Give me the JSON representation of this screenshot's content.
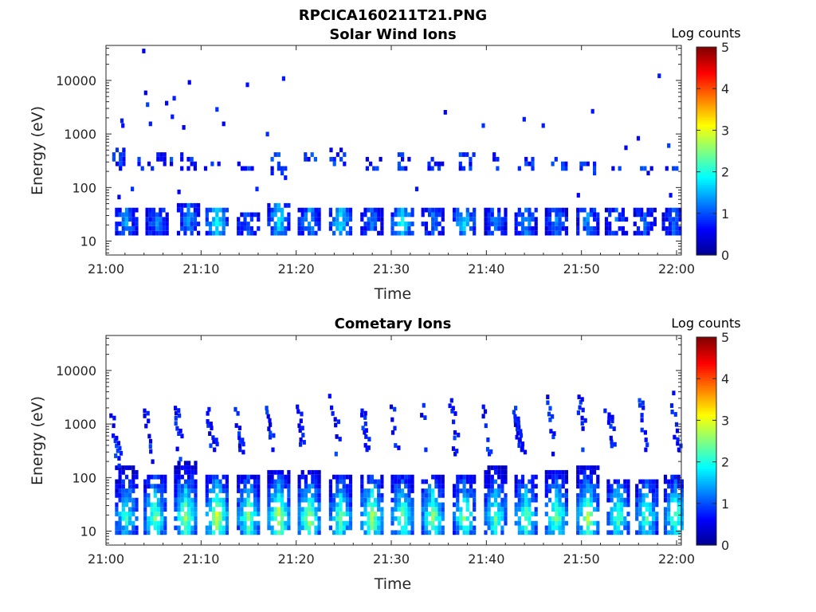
{
  "figure_title": "RPCICA160211T21.PNG",
  "colormap": [
    "#00008f",
    "#0000ff",
    "#0080ff",
    "#00ffff",
    "#80ff80",
    "#ffff00",
    "#ff8000",
    "#ff0000",
    "#800000"
  ],
  "chart_data": [
    {
      "type": "heatmap",
      "title": "Solar Wind Ions",
      "xlabel": "Time",
      "ylabel": "Energy (eV)",
      "xlim_minutes": [
        0,
        60.5
      ],
      "ylim": [
        5.5,
        45000
      ],
      "yscale": "log",
      "x_ticks": [
        "21:00",
        "21:10",
        "21:20",
        "21:30",
        "21:40",
        "21:50",
        "22:00"
      ],
      "y_ticks": [
        "10",
        "100",
        "1000",
        "10000"
      ],
      "colorbar": {
        "label": "Log counts",
        "range": [
          0,
          5
        ],
        "ticks": [
          "0",
          "1",
          "2",
          "3",
          "4",
          "5"
        ]
      },
      "bursts": [
        {
          "t": 2.0,
          "e": [
            12,
            40
          ],
          "peak": 1.4
        },
        {
          "t": 5.2,
          "e": [
            12,
            35
          ],
          "peak": 1.3
        },
        {
          "t": 8.5,
          "e": [
            12,
            45
          ],
          "peak": 1.4
        },
        {
          "t": 11.5,
          "e": [
            12,
            35
          ],
          "peak": 2.0
        },
        {
          "t": 14.8,
          "e": [
            12,
            30
          ],
          "peak": 1.2
        },
        {
          "t": 18.0,
          "e": [
            12,
            45
          ],
          "peak": 1.8
        },
        {
          "t": 21.2,
          "e": [
            12,
            40
          ],
          "peak": 1.5
        },
        {
          "t": 24.5,
          "e": [
            12,
            40
          ],
          "peak": 1.8
        },
        {
          "t": 27.8,
          "e": [
            12,
            35
          ],
          "peak": 1.2
        },
        {
          "t": 31.0,
          "e": [
            12,
            35
          ],
          "peak": 2.0
        },
        {
          "t": 34.2,
          "e": [
            12,
            35
          ],
          "peak": 1.3
        },
        {
          "t": 37.5,
          "e": [
            12,
            35
          ],
          "peak": 1.8
        },
        {
          "t": 40.8,
          "e": [
            12,
            35
          ],
          "peak": 1.3
        },
        {
          "t": 44.0,
          "e": [
            12,
            35
          ],
          "peak": 1.4
        },
        {
          "t": 47.2,
          "e": [
            12,
            35
          ],
          "peak": 1.3
        },
        {
          "t": 50.5,
          "e": [
            12,
            40
          ],
          "peak": 1.4
        },
        {
          "t": 53.5,
          "e": [
            12,
            35
          ],
          "peak": 1.2
        },
        {
          "t": 56.5,
          "e": [
            12,
            35
          ],
          "peak": 1.1
        },
        {
          "t": 59.5,
          "e": [
            12,
            35
          ],
          "peak": 1.2
        }
      ],
      "mid_clusters": [
        {
          "t": 1.0,
          "e": [
            180,
            500
          ]
        },
        {
          "t": 4.0,
          "e": [
            200,
            350
          ]
        },
        {
          "t": 6.0,
          "e": [
            250,
            450
          ]
        },
        {
          "t": 8.5,
          "e": [
            180,
            450
          ]
        },
        {
          "t": 11.0,
          "e": [
            200,
            300
          ]
        },
        {
          "t": 14.5,
          "e": [
            180,
            300
          ]
        },
        {
          "t": 18.0,
          "e": [
            130,
            400
          ]
        },
        {
          "t": 21.5,
          "e": [
            300,
            400
          ]
        },
        {
          "t": 24.2,
          "e": [
            220,
            500
          ]
        },
        {
          "t": 28.0,
          "e": [
            200,
            450
          ]
        },
        {
          "t": 31.0,
          "e": [
            200,
            400
          ]
        },
        {
          "t": 34.5,
          "e": [
            180,
            350
          ]
        },
        {
          "t": 37.8,
          "e": [
            200,
            400
          ]
        },
        {
          "t": 41.0,
          "e": [
            200,
            400
          ]
        },
        {
          "t": 44.0,
          "e": [
            180,
            350
          ]
        },
        {
          "t": 47.5,
          "e": [
            180,
            350
          ]
        },
        {
          "t": 50.5,
          "e": [
            150,
            300
          ]
        },
        {
          "t": 53.5,
          "e": [
            200,
            250
          ]
        },
        {
          "t": 56.5,
          "e": [
            150,
            250
          ]
        },
        {
          "t": 59.5,
          "e": [
            200,
            250
          ]
        }
      ],
      "sparse_points": [
        {
          "t": 3.8,
          "e": 32000
        },
        {
          "t": 4.0,
          "e": 5300
        },
        {
          "t": 4.2,
          "e": 3200
        },
        {
          "t": 6.2,
          "e": 3400
        },
        {
          "t": 6.8,
          "e": 1900
        },
        {
          "t": 7.0,
          "e": 4200
        },
        {
          "t": 8.6,
          "e": 8300
        },
        {
          "t": 11.5,
          "e": 2600
        },
        {
          "t": 14.7,
          "e": 7500
        },
        {
          "t": 18.5,
          "e": 9800
        },
        {
          "t": 12.2,
          "e": 1400
        },
        {
          "t": 16.8,
          "e": 900
        },
        {
          "t": 1.5,
          "e": 1600
        },
        {
          "t": 1.6,
          "e": 1300
        },
        {
          "t": 4.5,
          "e": 1400
        },
        {
          "t": 8.0,
          "e": 1200
        },
        {
          "t": 35.5,
          "e": 2300
        },
        {
          "t": 39.5,
          "e": 1300
        },
        {
          "t": 43.8,
          "e": 1700
        },
        {
          "t": 45.8,
          "e": 1300
        },
        {
          "t": 51.0,
          "e": 2400
        },
        {
          "t": 58.0,
          "e": 11000
        },
        {
          "t": 55.8,
          "e": 750
        },
        {
          "t": 59.0,
          "e": 550
        },
        {
          "t": 2.6,
          "e": 85
        },
        {
          "t": 7.5,
          "e": 75
        },
        {
          "t": 15.7,
          "e": 85
        },
        {
          "t": 32.5,
          "e": 85
        },
        {
          "t": 49.5,
          "e": 65
        },
        {
          "t": 54.5,
          "e": 500
        },
        {
          "t": 59.2,
          "e": 65
        },
        {
          "t": 1.2,
          "e": 60
        }
      ]
    },
    {
      "type": "heatmap",
      "title": "Cometary Ions",
      "xlabel": "Time",
      "ylabel": "Energy (eV)",
      "xlim_minutes": [
        0,
        60.5
      ],
      "ylim": [
        5.5,
        45000
      ],
      "yscale": "log",
      "x_ticks": [
        "21:00",
        "21:10",
        "21:20",
        "21:30",
        "21:40",
        "21:50",
        "22:00"
      ],
      "y_ticks": [
        "10",
        "100",
        "1000",
        "10000"
      ],
      "colorbar": {
        "label": "Log counts",
        "range": [
          0,
          5
        ],
        "ticks": [
          "0",
          "1",
          "2",
          "3",
          "4",
          "5"
        ]
      },
      "bursts": [
        {
          "t": 2.0,
          "e": [
            8,
            150
          ],
          "peak": 2.2
        },
        {
          "t": 5.0,
          "e": [
            8,
            100
          ],
          "peak": 2.5
        },
        {
          "t": 8.2,
          "e": [
            8,
            170
          ],
          "peak": 2.8
        },
        {
          "t": 11.5,
          "e": [
            8,
            100
          ],
          "peak": 3.0
        },
        {
          "t": 14.8,
          "e": [
            8,
            100
          ],
          "peak": 2.6
        },
        {
          "t": 18.0,
          "e": [
            8,
            120
          ],
          "peak": 3.0
        },
        {
          "t": 21.2,
          "e": [
            8,
            120
          ],
          "peak": 2.8
        },
        {
          "t": 24.5,
          "e": [
            8,
            100
          ],
          "peak": 2.5
        },
        {
          "t": 27.8,
          "e": [
            8,
            100
          ],
          "peak": 2.8
        },
        {
          "t": 31.0,
          "e": [
            8,
            100
          ],
          "peak": 2.6
        },
        {
          "t": 34.2,
          "e": [
            8,
            100
          ],
          "peak": 2.7
        },
        {
          "t": 37.5,
          "e": [
            8,
            100
          ],
          "peak": 2.5
        },
        {
          "t": 40.8,
          "e": [
            8,
            150
          ],
          "peak": 2.4
        },
        {
          "t": 44.0,
          "e": [
            8,
            100
          ],
          "peak": 2.5
        },
        {
          "t": 47.2,
          "e": [
            8,
            120
          ],
          "peak": 2.6
        },
        {
          "t": 50.5,
          "e": [
            8,
            150
          ],
          "peak": 2.8
        },
        {
          "t": 53.7,
          "e": [
            8,
            80
          ],
          "peak": 2.4
        },
        {
          "t": 56.7,
          "e": [
            8,
            80
          ],
          "peak": 2.3
        },
        {
          "t": 59.7,
          "e": [
            8,
            100
          ],
          "peak": 2.5
        }
      ],
      "dispersion_traces": [
        {
          "t": 0.5,
          "e": [
            150,
            1300
          ]
        },
        {
          "t": 4.0,
          "e": [
            180,
            1600
          ]
        },
        {
          "t": 7.0,
          "e": [
            200,
            1800
          ]
        },
        {
          "t": 10.5,
          "e": [
            300,
            1700
          ]
        },
        {
          "t": 13.5,
          "e": [
            300,
            1700
          ]
        },
        {
          "t": 16.8,
          "e": [
            300,
            1800
          ]
        },
        {
          "t": 20.0,
          "e": [
            250,
            1900
          ]
        },
        {
          "t": 23.5,
          "e": [
            250,
            3000
          ]
        },
        {
          "t": 26.8,
          "e": [
            250,
            1600
          ]
        },
        {
          "t": 29.8,
          "e": [
            300,
            1900
          ]
        },
        {
          "t": 33.0,
          "e": [
            300,
            2500
          ]
        },
        {
          "t": 36.0,
          "e": [
            250,
            2500
          ]
        },
        {
          "t": 39.5,
          "e": [
            250,
            1900
          ]
        },
        {
          "t": 42.8,
          "e": [
            300,
            1800
          ]
        },
        {
          "t": 46.3,
          "e": [
            250,
            2900
          ]
        },
        {
          "t": 49.5,
          "e": [
            300,
            2900
          ]
        },
        {
          "t": 52.5,
          "e": [
            300,
            1600
          ]
        },
        {
          "t": 56.0,
          "e": [
            300,
            2500
          ]
        },
        {
          "t": 59.3,
          "e": [
            300,
            4500
          ]
        }
      ]
    }
  ]
}
